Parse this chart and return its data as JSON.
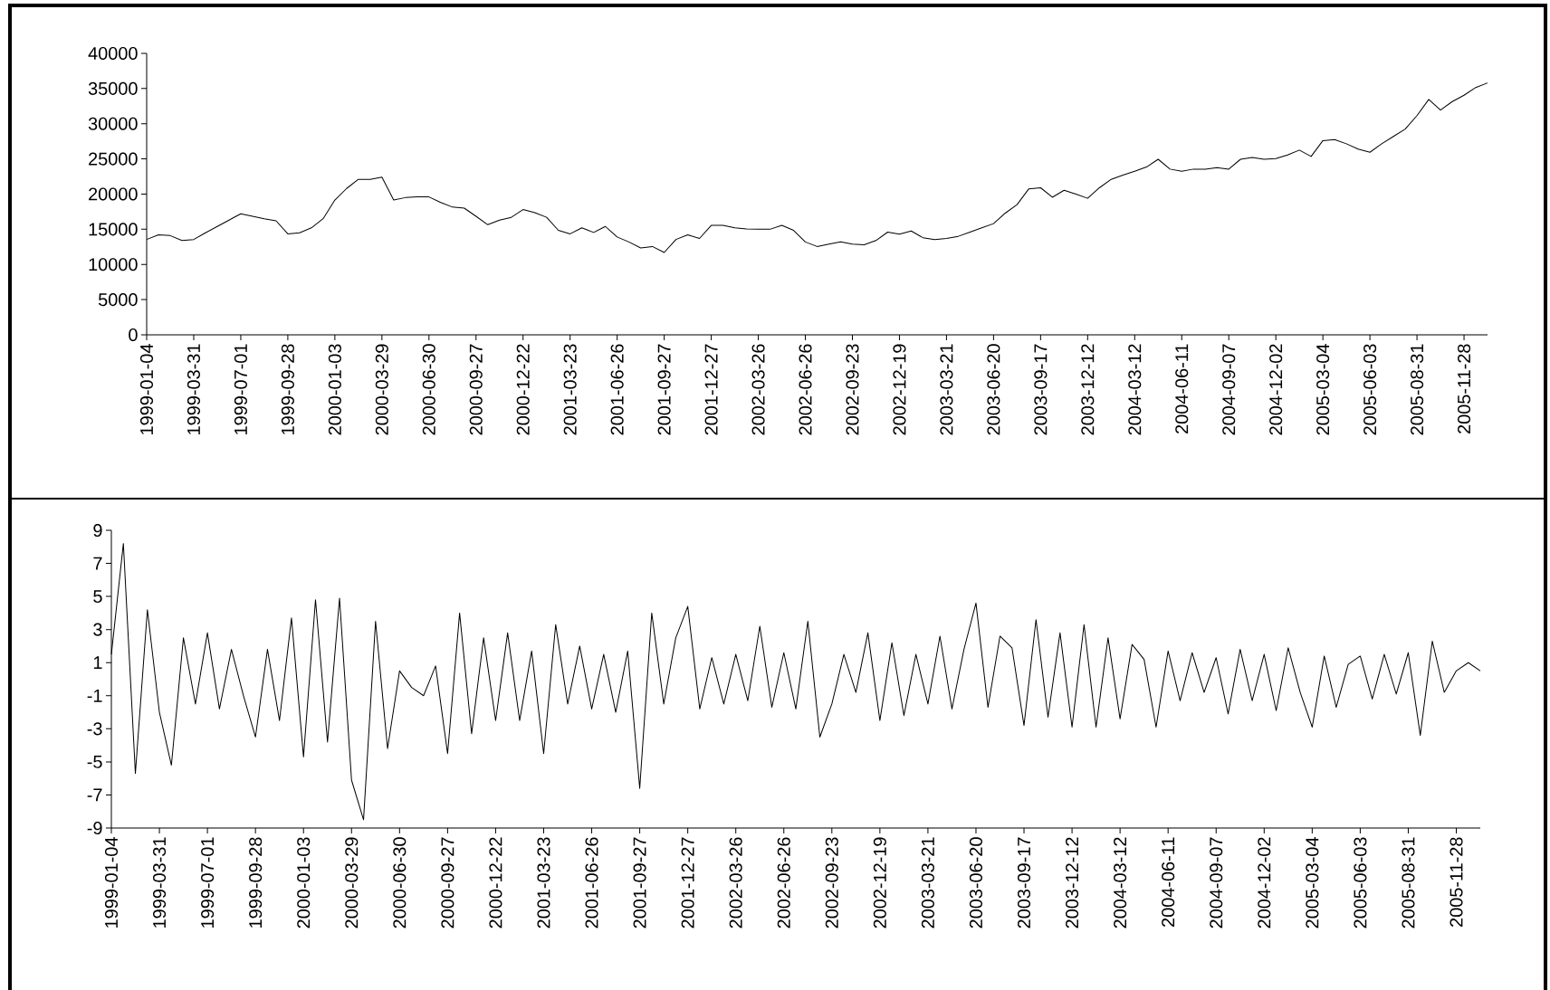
{
  "chart_data": [
    {
      "type": "line",
      "color": "#000000",
      "ylim": [
        0,
        40000
      ],
      "yticks": [
        0,
        5000,
        10000,
        15000,
        20000,
        25000,
        30000,
        35000,
        40000
      ],
      "categories": [
        "1999-01-04",
        null,
        null,
        null,
        "1999-03-31",
        null,
        null,
        null,
        "1999-07-01",
        null,
        null,
        null,
        "1999-09-28",
        null,
        null,
        null,
        "2000-01-03",
        null,
        null,
        null,
        "2000-03-29",
        null,
        null,
        null,
        "2000-06-30",
        null,
        null,
        null,
        "2000-09-27",
        null,
        null,
        null,
        "2000-12-22",
        null,
        null,
        null,
        "2001-03-23",
        null,
        null,
        null,
        "2001-06-26",
        null,
        null,
        null,
        "2001-09-27",
        null,
        null,
        null,
        "2001-12-27",
        null,
        null,
        null,
        "2002-03-26",
        null,
        null,
        null,
        "2002-06-26",
        null,
        null,
        null,
        "2002-09-23",
        null,
        null,
        null,
        "2002-12-19",
        null,
        null,
        null,
        "2003-03-21",
        null,
        null,
        null,
        "2003-06-20",
        null,
        null,
        null,
        "2003-09-17",
        null,
        null,
        null,
        "2003-12-12",
        null,
        null,
        null,
        "2004-03-12",
        null,
        null,
        null,
        "2004-06-11",
        null,
        null,
        null,
        "2004-09-07",
        null,
        null,
        null,
        "2004-12-02",
        null,
        null,
        null,
        "2005-03-04",
        null,
        null,
        null,
        "2005-06-03",
        null,
        null,
        null,
        "2005-08-31",
        null,
        null,
        null,
        "2005-11-28",
        null,
        null
      ],
      "values": [
        13550,
        14200,
        14100,
        13400,
        13550,
        14500,
        15400,
        16300,
        17200,
        16850,
        16500,
        16200,
        14350,
        14500,
        15200,
        16500,
        19150,
        20800,
        22100,
        22100,
        22400,
        19150,
        19500,
        19600,
        19600,
        18800,
        18150,
        18000,
        16850,
        15650,
        16300,
        16700,
        17800,
        17350,
        16700,
        14850,
        14350,
        15200,
        14550,
        15400,
        13900,
        13200,
        12350,
        12550,
        11700,
        13550,
        14200,
        13700,
        15550,
        15550,
        15200,
        15050,
        15000,
        15000,
        15550,
        14850,
        13200,
        12550,
        12900,
        13200,
        12900,
        12800,
        13400,
        14600,
        14300,
        14750,
        13800,
        13550,
        13700,
        14000,
        14600,
        15200,
        15800,
        17300,
        18500,
        20750,
        20900,
        19550,
        20550,
        20000,
        19400,
        20900,
        22100,
        22700,
        23250,
        23850,
        24950,
        23550,
        23250,
        23550,
        23550,
        23750,
        23550,
        24950,
        25200,
        24950,
        25050,
        25550,
        26250,
        25350,
        27600,
        27750,
        27150,
        26400,
        25950,
        27150,
        28200,
        29250,
        31150,
        33450,
        31950,
        33150,
        34050,
        35150,
        35800
      ]
    },
    {
      "type": "line",
      "color": "#000000",
      "ylim": [
        -9,
        9
      ],
      "yticks": [
        -9,
        -7,
        -5,
        -3,
        -1,
        1,
        3,
        5,
        7,
        9
      ],
      "categories": [
        "1999-01-04",
        null,
        null,
        null,
        "1999-03-31",
        null,
        null,
        null,
        "1999-07-01",
        null,
        null,
        null,
        "1999-09-28",
        null,
        null,
        null,
        "2000-01-03",
        null,
        null,
        null,
        "2000-03-29",
        null,
        null,
        null,
        "2000-06-30",
        null,
        null,
        null,
        "2000-09-27",
        null,
        null,
        null,
        "2000-12-22",
        null,
        null,
        null,
        "2001-03-23",
        null,
        null,
        null,
        "2001-06-26",
        null,
        null,
        null,
        "2001-09-27",
        null,
        null,
        null,
        "2001-12-27",
        null,
        null,
        null,
        "2002-03-26",
        null,
        null,
        null,
        "2002-06-26",
        null,
        null,
        null,
        "2002-09-23",
        null,
        null,
        null,
        "2002-12-19",
        null,
        null,
        null,
        "2003-03-21",
        null,
        null,
        null,
        "2003-06-20",
        null,
        null,
        null,
        "2003-09-17",
        null,
        null,
        null,
        "2003-12-12",
        null,
        null,
        null,
        "2004-03-12",
        null,
        null,
        null,
        "2004-06-11",
        null,
        null,
        null,
        "2004-09-07",
        null,
        null,
        null,
        "2004-12-02",
        null,
        null,
        null,
        "2005-03-04",
        null,
        null,
        null,
        "2005-06-03",
        null,
        null,
        null,
        "2005-08-31",
        null,
        null,
        null,
        "2005-11-28",
        null,
        null
      ],
      "values": [
        1.5,
        8.2,
        -5.7,
        4.2,
        -2,
        -5.2,
        2.5,
        -1.5,
        2.8,
        -1.8,
        1.8,
        -1.0,
        -3.5,
        1.8,
        -2.5,
        3.7,
        -4.7,
        4.8,
        -3.8,
        4.9,
        -6.1,
        -8.5,
        3.5,
        -4.2,
        0.5,
        -0.5,
        -1,
        0.8,
        -4.5,
        4.0,
        -3.3,
        2.5,
        -2.5,
        2.8,
        -2.5,
        1.7,
        -4.5,
        3.3,
        -1.5,
        2,
        -1.8,
        1.5,
        -2,
        1.7,
        -6.6,
        4,
        -1.5,
        2.5,
        4.4,
        -1.8,
        1.3,
        -1.5,
        1.5,
        -1.3,
        3.2,
        -1.7,
        1.6,
        -1.8,
        3.5,
        -3.5,
        -1.5,
        1.5,
        -0.8,
        2.8,
        -2.5,
        2.2,
        -2.2,
        1.5,
        -1.5,
        2.6,
        -1.8,
        1.8,
        4.6,
        -1.7,
        2.6,
        1.9,
        -2.8,
        3.6,
        -2.3,
        2.8,
        -2.9,
        3.3,
        -2.9,
        2.5,
        -2.4,
        2.1,
        1.2,
        -2.9,
        1.7,
        -1.3,
        1.6,
        -0.8,
        1.3,
        -2.1,
        1.8,
        -1.3,
        1.5,
        -1.9,
        1.9,
        -0.8,
        -2.9,
        1.4,
        -1.7,
        0.9,
        1.4,
        -1.2,
        1.5,
        -0.9,
        1.6,
        -3.4,
        2.3,
        -0.8,
        0.5,
        1.0,
        0.5
      ]
    }
  ]
}
